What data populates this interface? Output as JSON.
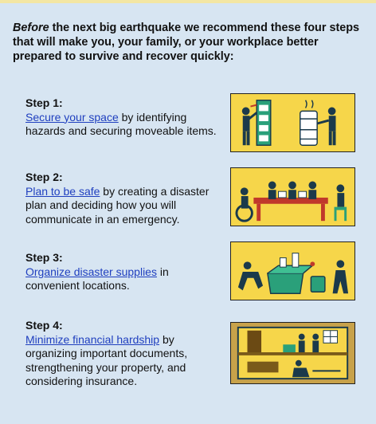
{
  "intro": {
    "lead": "Before",
    "rest": " the next big earthquake we recommend these four steps that will make you, your family, or your workplace better prepared to survive and recover quickly:"
  },
  "steps": [
    {
      "title": "Step 1:",
      "link": "Secure your space",
      "text": " by identifying hazards and securing moveable items."
    },
    {
      "title": "Step 2:",
      "link": "Plan to be safe",
      "text": " by creating a disaster plan and deciding how you will communicate in an emergency."
    },
    {
      "title": "Step 3:",
      "link": "Organize disaster supplies",
      "text": " in convenient locations."
    },
    {
      "title": "Step 4:",
      "link": "Minimize financial hardship",
      "text": " by organizing important documents, strengthening your property, and considering insurance."
    }
  ],
  "colors": {
    "panel": "#d7e5f2",
    "illustration_bg": "#f6d64a",
    "link": "#1f3fbf",
    "figure": "#1b3a4b",
    "accent": "#2aa07a"
  },
  "icons": [
    "secure-space-illustration",
    "plan-safe-illustration",
    "disaster-supplies-illustration",
    "financial-hardship-illustration"
  ]
}
